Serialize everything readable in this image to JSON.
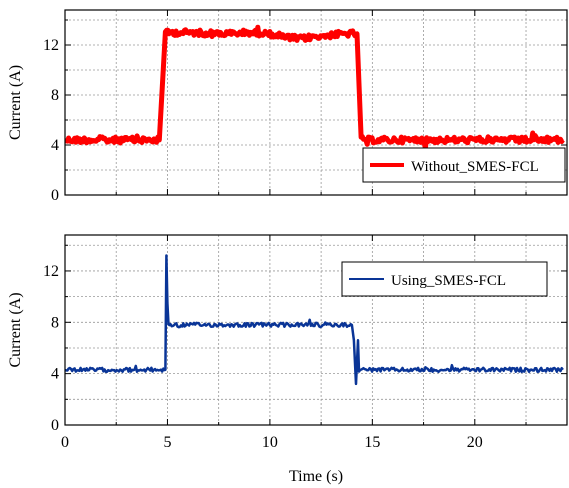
{
  "chart_data": [
    {
      "type": "line",
      "ylabel": "Current (A)",
      "xlim": [
        0,
        24.5
      ],
      "ylim": [
        0,
        14.8
      ],
      "yticks": [
        0,
        4,
        8,
        12
      ],
      "xticks": [
        0,
        5,
        10,
        15,
        20
      ],
      "grid": true,
      "legend_position": "bottom-right",
      "series": [
        {
          "name": "Without_SMES-FCL",
          "color": "#ff0000",
          "x": [
            0,
            4.4,
            4.6,
            4.9,
            6,
            8,
            9,
            10,
            10.8,
            11.5,
            12.3,
            13,
            13.7,
            14.1,
            14.25,
            14.45,
            16,
            18,
            20,
            22,
            24.3
          ],
          "y": [
            4.4,
            4.4,
            4.4,
            13.0,
            13.0,
            12.9,
            13.0,
            12.9,
            12.6,
            12.5,
            12.7,
            12.8,
            12.9,
            12.9,
            12.9,
            4.4,
            4.4,
            4.4,
            4.4,
            4.4,
            4.4
          ]
        }
      ]
    },
    {
      "type": "line",
      "xlabel": "Time (s)",
      "ylabel": "Current (A)",
      "xlim": [
        0,
        24.5
      ],
      "ylim": [
        0,
        14.8
      ],
      "yticks": [
        0,
        4,
        8,
        12
      ],
      "xticks": [
        0,
        5,
        10,
        15,
        20
      ],
      "xticklabels": [
        "0",
        "5",
        "10",
        "15",
        "20"
      ],
      "grid": true,
      "legend_position": "top-right",
      "series": [
        {
          "name": "Using_SMES-FCL",
          "color": "#0a3597",
          "x": [
            0,
            4.8,
            4.9,
            4.95,
            5.0,
            5.05,
            5.15,
            6,
            8,
            10,
            12,
            14.0,
            14.1,
            14.2,
            14.3,
            14.35,
            14.45,
            16,
            18,
            20,
            22,
            24.3
          ],
          "y": [
            4.3,
            4.3,
            4.3,
            13.2,
            9.5,
            7.8,
            7.8,
            7.8,
            7.8,
            7.8,
            7.8,
            7.8,
            6.6,
            3.2,
            6.6,
            4.3,
            4.3,
            4.3,
            4.3,
            4.3,
            4.3,
            4.3
          ]
        }
      ]
    }
  ]
}
